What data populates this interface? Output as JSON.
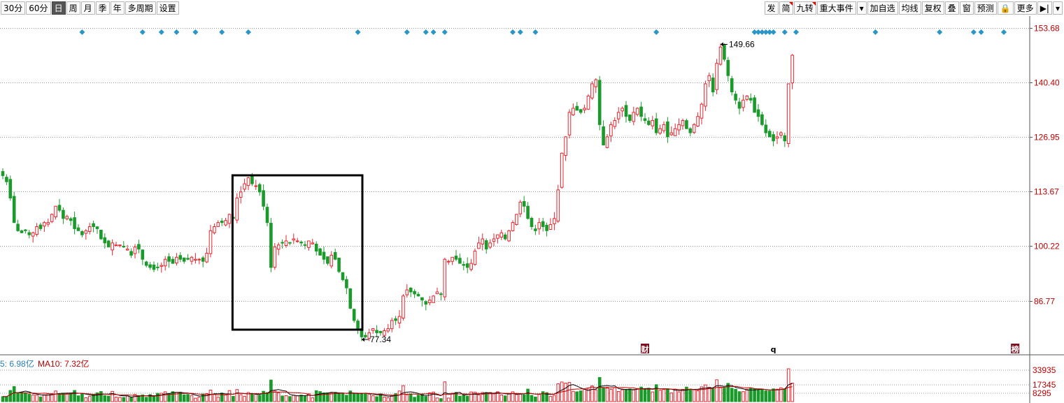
{
  "toolbar": {
    "left": [
      "30分",
      "60分",
      "日",
      "周",
      "月",
      "季",
      "年",
      "多周期",
      "设置"
    ],
    "active": "日",
    "right": [
      "发",
      "简",
      "九转",
      "重大事件",
      "▾",
      "加自选",
      "均线",
      "复权",
      "叠",
      "窗",
      "预测",
      "🔒",
      "更多",
      "▶|",
      "▾"
    ]
  },
  "colors": {
    "up": "#e8262f",
    "down": "#1a9a2a",
    "grid": "#9a9a9a",
    "diamond": "#2a95c9",
    "axis_text": "#c00000"
  },
  "chart_data": [
    {
      "type": "candlestick",
      "yticks": [
        "153.68",
        "140.40",
        "126.95",
        "113.67",
        "100.22",
        "86.77"
      ],
      "ylim": [
        74,
        157
      ],
      "annotations": [
        {
          "label": "149.66",
          "value": 149.66,
          "kind": "max"
        },
        {
          "label": "77.34",
          "value": 77.34,
          "kind": "min"
        }
      ],
      "series_closes": [
        117.5,
        116,
        112,
        106,
        104,
        103.5,
        104,
        103,
        103.5,
        105,
        104.5,
        106,
        106,
        108,
        110,
        109,
        107,
        107.5,
        106.5,
        104.5,
        104,
        103,
        104,
        105,
        105,
        104.5,
        102,
        101,
        100,
        101,
        100.5,
        100.5,
        100,
        99.5,
        98,
        100,
        99.5,
        97,
        95.5,
        95,
        94.5,
        95,
        95.5,
        97,
        96.5,
        96,
        97.5,
        97,
        96.5,
        97,
        97.5,
        97,
        97,
        96.5,
        98.5,
        104,
        105,
        106,
        106,
        106.5,
        108,
        107,
        112,
        113.5,
        115.5,
        117,
        115.5,
        115,
        113.5,
        110,
        106,
        95,
        100,
        100.5,
        101,
        101.5,
        101,
        102,
        101.5,
        101,
        100.5,
        101.5,
        101,
        99,
        98,
        97,
        96,
        98,
        97,
        94,
        92,
        90,
        85,
        82,
        80,
        78,
        78,
        79,
        80,
        79,
        79,
        79.5,
        80,
        82,
        82,
        83,
        88,
        89.5,
        89,
        88.5,
        88,
        87,
        86,
        87,
        88,
        89,
        88.5,
        97,
        96.5,
        97.5,
        97,
        96,
        95.5,
        95,
        96,
        99,
        101,
        102,
        99.5,
        101,
        102,
        103,
        103.5,
        102,
        104,
        106,
        108,
        111,
        110,
        107,
        105,
        104,
        106,
        105,
        104,
        105.5,
        107,
        114,
        123,
        127,
        133,
        134,
        133.5,
        133,
        134,
        137,
        140,
        141,
        130,
        125,
        127,
        130,
        131,
        133,
        134,
        132,
        131,
        133,
        134,
        132,
        131,
        130,
        131,
        128,
        129,
        130,
        127,
        128,
        129,
        130,
        131,
        129,
        128,
        130,
        132,
        135,
        140,
        142,
        138,
        145,
        149,
        146,
        142,
        138,
        136,
        134,
        136,
        137,
        136,
        133,
        132,
        130,
        128,
        127,
        126,
        127,
        128,
        126,
        140,
        147
      ],
      "highlight_box": {
        "from_index": 61,
        "to_index": 95
      },
      "markers_x_index": [
        21,
        37,
        42,
        46,
        51,
        58,
        65,
        94,
        107,
        112,
        114,
        117,
        135,
        137,
        141,
        173,
        199,
        200,
        201,
        202,
        203,
        204,
        207,
        210,
        231,
        248,
        257,
        259,
        265
      ],
      "event_labels": [
        {
          "text": "财",
          "index": 170
        },
        {
          "text": "q",
          "index": 204
        },
        {
          "text": "榜",
          "index": 268
        }
      ]
    },
    {
      "type": "bar",
      "name": "volume",
      "legend": [
        "5: 6.98亿",
        "MA10: 7.32亿"
      ],
      "yticks": [
        "33935",
        "17345",
        "8295"
      ]
    }
  ]
}
